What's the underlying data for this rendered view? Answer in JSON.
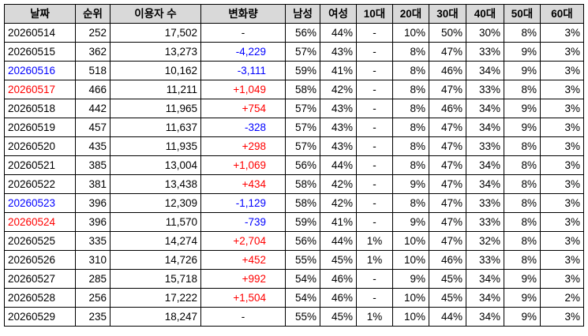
{
  "headers": [
    "날짜",
    "순위",
    "이용자 수",
    "변화량",
    "남성",
    "여성",
    "10대",
    "20대",
    "30대",
    "40대",
    "50대",
    "60대"
  ],
  "colors": {
    "blue": "#0000ff",
    "red": "#ff0000",
    "header_bg": "#d9d9d9"
  },
  "rows": [
    {
      "date": "20260514",
      "date_color": "black",
      "rank": "252",
      "users": "17,502",
      "change": "-",
      "change_color": "black",
      "male": "56%",
      "female": "44%",
      "a10": "-",
      "a20": "10%",
      "a30": "50%",
      "a40": "30%",
      "a50": "8%",
      "a60": "3%"
    },
    {
      "date": "20260515",
      "date_color": "black",
      "rank": "362",
      "users": "13,273",
      "change": "-4,229",
      "change_color": "blue",
      "male": "57%",
      "female": "43%",
      "a10": "-",
      "a20": "8%",
      "a30": "47%",
      "a40": "33%",
      "a50": "9%",
      "a60": "3%"
    },
    {
      "date": "20260516",
      "date_color": "blue",
      "rank": "518",
      "users": "10,162",
      "change": "-3,111",
      "change_color": "blue",
      "male": "59%",
      "female": "41%",
      "a10": "-",
      "a20": "8%",
      "a30": "46%",
      "a40": "34%",
      "a50": "9%",
      "a60": "3%"
    },
    {
      "date": "20260517",
      "date_color": "red",
      "rank": "466",
      "users": "11,211",
      "change": "+1,049",
      "change_color": "red",
      "male": "58%",
      "female": "42%",
      "a10": "-",
      "a20": "8%",
      "a30": "47%",
      "a40": "33%",
      "a50": "8%",
      "a60": "3%"
    },
    {
      "date": "20260518",
      "date_color": "black",
      "rank": "442",
      "users": "11,965",
      "change": "+754",
      "change_color": "red",
      "male": "57%",
      "female": "43%",
      "a10": "-",
      "a20": "8%",
      "a30": "46%",
      "a40": "34%",
      "a50": "9%",
      "a60": "3%"
    },
    {
      "date": "20260519",
      "date_color": "black",
      "rank": "457",
      "users": "11,637",
      "change": "-328",
      "change_color": "blue",
      "male": "57%",
      "female": "43%",
      "a10": "-",
      "a20": "8%",
      "a30": "47%",
      "a40": "34%",
      "a50": "9%",
      "a60": "3%"
    },
    {
      "date": "20260520",
      "date_color": "black",
      "rank": "435",
      "users": "11,935",
      "change": "+298",
      "change_color": "red",
      "male": "57%",
      "female": "43%",
      "a10": "-",
      "a20": "8%",
      "a30": "47%",
      "a40": "33%",
      "a50": "8%",
      "a60": "3%"
    },
    {
      "date": "20260521",
      "date_color": "black",
      "rank": "385",
      "users": "13,004",
      "change": "+1,069",
      "change_color": "red",
      "male": "56%",
      "female": "44%",
      "a10": "-",
      "a20": "8%",
      "a30": "47%",
      "a40": "34%",
      "a50": "8%",
      "a60": "3%"
    },
    {
      "date": "20260522",
      "date_color": "black",
      "rank": "381",
      "users": "13,438",
      "change": "+434",
      "change_color": "red",
      "male": "58%",
      "female": "42%",
      "a10": "-",
      "a20": "9%",
      "a30": "47%",
      "a40": "34%",
      "a50": "8%",
      "a60": "3%"
    },
    {
      "date": "20260523",
      "date_color": "blue",
      "rank": "396",
      "users": "12,309",
      "change": "-1,129",
      "change_color": "blue",
      "male": "58%",
      "female": "42%",
      "a10": "-",
      "a20": "8%",
      "a30": "47%",
      "a40": "33%",
      "a50": "8%",
      "a60": "3%"
    },
    {
      "date": "20260524",
      "date_color": "red",
      "rank": "396",
      "users": "11,570",
      "change": "-739",
      "change_color": "blue",
      "male": "59%",
      "female": "41%",
      "a10": "-",
      "a20": "9%",
      "a30": "47%",
      "a40": "33%",
      "a50": "8%",
      "a60": "3%"
    },
    {
      "date": "20260525",
      "date_color": "black",
      "rank": "335",
      "users": "14,274",
      "change": "+2,704",
      "change_color": "red",
      "male": "56%",
      "female": "44%",
      "a10": "1%",
      "a20": "10%",
      "a30": "47%",
      "a40": "32%",
      "a50": "8%",
      "a60": "3%"
    },
    {
      "date": "20260526",
      "date_color": "black",
      "rank": "310",
      "users": "14,726",
      "change": "+452",
      "change_color": "red",
      "male": "55%",
      "female": "45%",
      "a10": "1%",
      "a20": "10%",
      "a30": "46%",
      "a40": "33%",
      "a50": "8%",
      "a60": "3%"
    },
    {
      "date": "20260527",
      "date_color": "black",
      "rank": "285",
      "users": "15,718",
      "change": "+992",
      "change_color": "red",
      "male": "54%",
      "female": "46%",
      "a10": "-",
      "a20": "9%",
      "a30": "45%",
      "a40": "34%",
      "a50": "9%",
      "a60": "3%"
    },
    {
      "date": "20260528",
      "date_color": "black",
      "rank": "256",
      "users": "17,222",
      "change": "+1,504",
      "change_color": "red",
      "male": "54%",
      "female": "46%",
      "a10": "-",
      "a20": "10%",
      "a30": "45%",
      "a40": "34%",
      "a50": "9%",
      "a60": "2%"
    },
    {
      "date": "20260529",
      "date_color": "black",
      "rank": "235",
      "users": "18,247",
      "change": "-",
      "change_color": "black",
      "male": "55%",
      "female": "45%",
      "a10": "1%",
      "a20": "10%",
      "a30": "44%",
      "a40": "34%",
      "a50": "9%",
      "a60": "3%"
    }
  ]
}
